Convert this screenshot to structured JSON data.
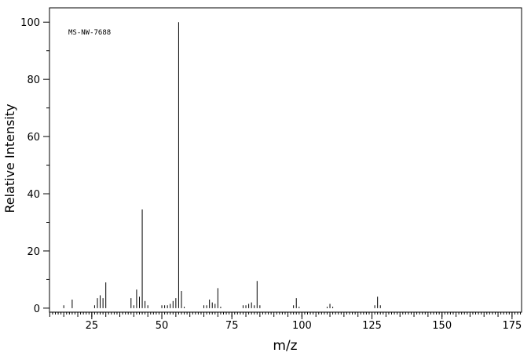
{
  "chart_data": {
    "type": "spectrum",
    "annotation": "MS-NW-7688",
    "x_label": "m/z",
    "y_label": "Relative Intensity",
    "x": [
      15,
      18,
      26,
      27,
      28,
      29,
      30,
      39,
      40,
      41,
      42,
      43,
      44,
      45,
      50,
      51,
      52,
      53,
      54,
      55,
      56,
      57,
      58,
      65,
      66,
      67,
      68,
      69,
      70,
      71,
      79,
      80,
      81,
      82,
      83,
      84,
      85,
      97,
      98,
      99,
      109,
      110,
      111,
      126,
      127,
      128
    ],
    "values": [
      1,
      3,
      1,
      3.5,
      4.5,
      3.5,
      9,
      3.5,
      1,
      6.5,
      4,
      34.5,
      2.5,
      1,
      1,
      1,
      1,
      1.5,
      2.5,
      3.5,
      100,
      6,
      0.5,
      1,
      1,
      3,
      2,
      1.5,
      7,
      0.5,
      1,
      1,
      1.5,
      2,
      1,
      9.5,
      1,
      1,
      3.5,
      0.5,
      0.5,
      1.5,
      0.5,
      1,
      4,
      1
    ],
    "color": "#000000",
    "xlim": [
      9.9,
      178.4
    ],
    "xticks": [
      25,
      50,
      75,
      100,
      125,
      150,
      175
    ],
    "ylim": [
      -1.4,
      105
    ],
    "yticks": [
      0,
      20,
      40,
      60,
      80,
      100
    ]
  }
}
